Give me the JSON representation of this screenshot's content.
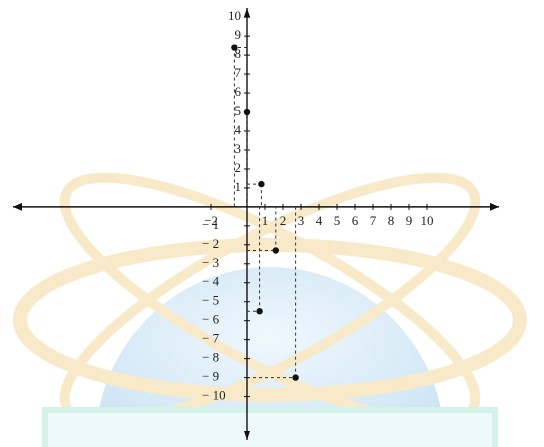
{
  "chart_data": {
    "type": "scatter",
    "x": [
      -0.7,
      0,
      0.8,
      1.6,
      0.7,
      2.7
    ],
    "values": [
      8.4,
      5,
      1.2,
      -2.3,
      -5.5,
      -9
    ],
    "color": "#111111",
    "xlim": [
      -13,
      14
    ],
    "ylim": [
      -12.5,
      10.8
    ],
    "xticks": [
      {
        "value": -2,
        "label": "−2"
      },
      1,
      2,
      3,
      4,
      5,
      6,
      7,
      8,
      9,
      10
    ],
    "yticks": [
      1,
      2,
      3,
      4,
      5,
      6,
      7,
      8,
      9,
      10,
      {
        "value": -1,
        "label": "− 1"
      },
      {
        "value": -2,
        "label": "− 2"
      },
      {
        "value": -3,
        "label": "− 3"
      },
      {
        "value": -4,
        "label": "− 4"
      },
      {
        "value": -5,
        "label": "− 5"
      },
      {
        "value": -6,
        "label": "− 6"
      },
      {
        "value": -7,
        "label": "− 7"
      },
      {
        "value": -8,
        "label": "− 8"
      },
      {
        "value": -9,
        "label": "− 9"
      },
      {
        "value": -10,
        "label": "− 10"
      }
    ],
    "guides": true
  }
}
